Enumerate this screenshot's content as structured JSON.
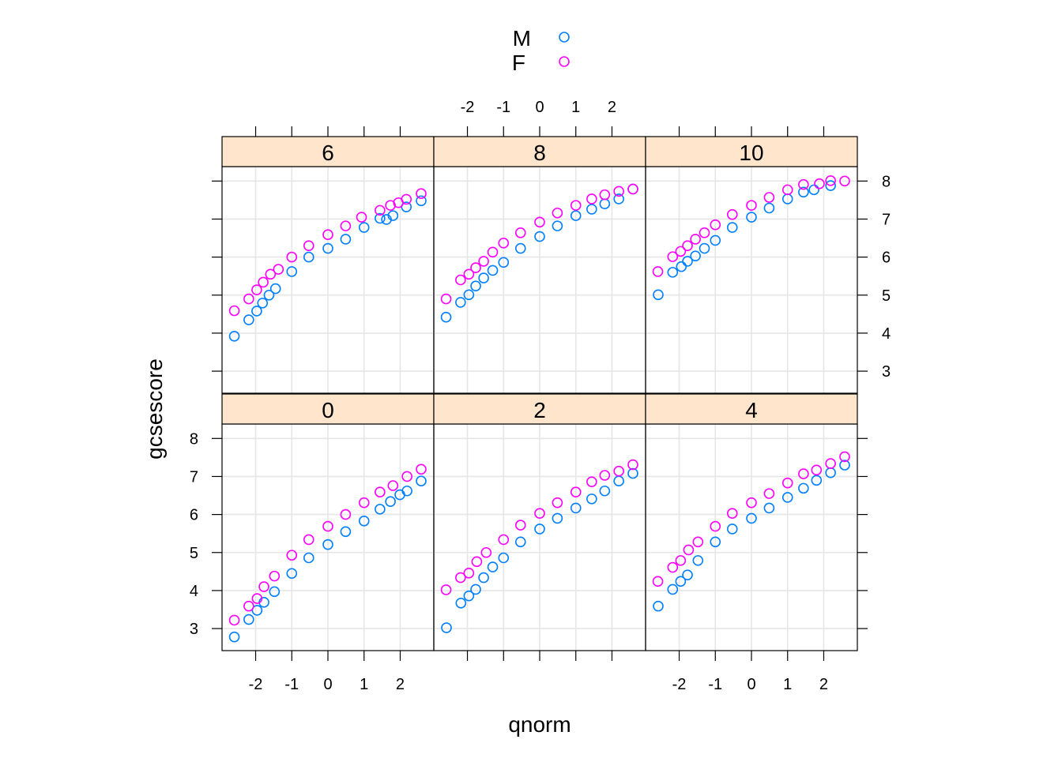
{
  "chart_data": {
    "type": "scatter",
    "subtype": "lattice qq-normal plot, 2x3 panels",
    "xlabel": "qnorm",
    "ylabel": "gcsescore",
    "xlim": [
      -2.93,
      2.93
    ],
    "ylim": [
      2.42,
      8.38
    ],
    "x_ticks": [
      -2,
      -1,
      0,
      1,
      2
    ],
    "y_ticks": [
      3,
      4,
      5,
      6,
      7,
      8
    ],
    "grid": true,
    "legend": {
      "placement": "top",
      "entries": [
        {
          "name": "M",
          "color": "#0080ff",
          "marker": "open-circle"
        },
        {
          "name": "F",
          "color": "#ff00ff",
          "marker": "open-circle"
        }
      ]
    },
    "strip_color": "#ffe5cc",
    "panels": [
      {
        "label": "6",
        "row": "top",
        "col": 1,
        "series": [
          {
            "name": "M",
            "points": [
              [
                -2.59,
                3.92
              ],
              [
                -2.19,
                4.35
              ],
              [
                -1.97,
                4.58
              ],
              [
                -1.81,
                4.79
              ],
              [
                -1.63,
                5.0
              ],
              [
                -1.45,
                5.17
              ],
              [
                -1.0,
                5.62
              ],
              [
                -0.53,
                6.0
              ],
              [
                0,
                6.23
              ],
              [
                0.49,
                6.47
              ],
              [
                1.0,
                6.78
              ],
              [
                1.44,
                7.02
              ],
              [
                1.62,
                6.99
              ],
              [
                1.8,
                7.09
              ],
              [
                2.17,
                7.32
              ],
              [
                2.58,
                7.48
              ]
            ]
          },
          {
            "name": "F",
            "points": [
              [
                -2.59,
                4.59
              ],
              [
                -2.19,
                4.9
              ],
              [
                -1.97,
                5.14
              ],
              [
                -1.79,
                5.34
              ],
              [
                -1.59,
                5.55
              ],
              [
                -1.37,
                5.68
              ],
              [
                -1.0,
                6.0
              ],
              [
                -0.53,
                6.3
              ],
              [
                0,
                6.59
              ],
              [
                0.49,
                6.82
              ],
              [
                0.93,
                7.05
              ],
              [
                1.44,
                7.23
              ],
              [
                1.73,
                7.36
              ],
              [
                1.95,
                7.43
              ],
              [
                2.17,
                7.52
              ],
              [
                2.58,
                7.67
              ]
            ]
          }
        ]
      },
      {
        "label": "8",
        "row": "top",
        "col": 2,
        "series": [
          {
            "name": "M",
            "points": [
              [
                -2.59,
                4.42
              ],
              [
                -2.19,
                4.81
              ],
              [
                -1.96,
                5.01
              ],
              [
                -1.77,
                5.24
              ],
              [
                -1.55,
                5.45
              ],
              [
                -1.3,
                5.65
              ],
              [
                -1.0,
                5.86
              ],
              [
                -0.53,
                6.23
              ],
              [
                0,
                6.54
              ],
              [
                0.49,
                6.82
              ],
              [
                1.0,
                7.09
              ],
              [
                1.44,
                7.26
              ],
              [
                1.8,
                7.4
              ],
              [
                2.19,
                7.53
              ],
              [
                2.58,
                7.79
              ]
            ]
          },
          {
            "name": "F",
            "points": [
              [
                -2.59,
                4.9
              ],
              [
                -2.19,
                5.4
              ],
              [
                -1.96,
                5.55
              ],
              [
                -1.77,
                5.72
              ],
              [
                -1.55,
                5.89
              ],
              [
                -1.3,
                6.13
              ],
              [
                -1.0,
                6.37
              ],
              [
                -0.53,
                6.64
              ],
              [
                0,
                6.92
              ],
              [
                0.49,
                7.16
              ],
              [
                1.0,
                7.36
              ],
              [
                1.44,
                7.53
              ],
              [
                1.8,
                7.64
              ],
              [
                2.19,
                7.73
              ],
              [
                2.58,
                7.79
              ]
            ]
          }
        ]
      },
      {
        "label": "10",
        "row": "top",
        "col": 3,
        "series": [
          {
            "name": "M",
            "points": [
              [
                -2.58,
                5.01
              ],
              [
                -2.18,
                5.6
              ],
              [
                -1.94,
                5.75
              ],
              [
                -1.77,
                5.89
              ],
              [
                -1.55,
                6.03
              ],
              [
                -1.3,
                6.23
              ],
              [
                -1.0,
                6.44
              ],
              [
                -0.53,
                6.78
              ],
              [
                0,
                7.05
              ],
              [
                0.49,
                7.29
              ],
              [
                1.0,
                7.53
              ],
              [
                1.44,
                7.71
              ],
              [
                1.73,
                7.77
              ],
              [
                2.19,
                7.88
              ]
            ]
          },
          {
            "name": "F",
            "points": [
              [
                -2.59,
                5.62
              ],
              [
                -2.18,
                6.01
              ],
              [
                -1.96,
                6.15
              ],
              [
                -1.77,
                6.3
              ],
              [
                -1.55,
                6.47
              ],
              [
                -1.3,
                6.64
              ],
              [
                -1.0,
                6.85
              ],
              [
                -0.53,
                7.12
              ],
              [
                0,
                7.36
              ],
              [
                0.49,
                7.57
              ],
              [
                1.0,
                7.77
              ],
              [
                1.44,
                7.91
              ],
              [
                1.88,
                7.93
              ],
              [
                2.19,
                8.01
              ],
              [
                2.58,
                8.0
              ]
            ]
          }
        ]
      },
      {
        "label": "0",
        "row": "bottom",
        "col": 1,
        "series": [
          {
            "name": "M",
            "points": [
              [
                -2.59,
                2.78
              ],
              [
                -2.19,
                3.24
              ],
              [
                -1.96,
                3.48
              ],
              [
                -1.77,
                3.69
              ],
              [
                -1.48,
                3.97
              ],
              [
                -1.0,
                4.45
              ],
              [
                -0.53,
                4.86
              ],
              [
                0,
                5.21
              ],
              [
                0.49,
                5.55
              ],
              [
                1.0,
                5.83
              ],
              [
                1.44,
                6.14
              ],
              [
                1.73,
                6.34
              ],
              [
                1.99,
                6.52
              ],
              [
                2.19,
                6.62
              ],
              [
                2.58,
                6.88
              ]
            ]
          },
          {
            "name": "F",
            "points": [
              [
                -2.59,
                3.22
              ],
              [
                -2.19,
                3.59
              ],
              [
                -1.96,
                3.79
              ],
              [
                -1.77,
                4.1
              ],
              [
                -1.48,
                4.38
              ],
              [
                -1.0,
                4.93
              ],
              [
                -0.53,
                5.34
              ],
              [
                0,
                5.69
              ],
              [
                0.49,
                6.0
              ],
              [
                1.0,
                6.31
              ],
              [
                1.44,
                6.59
              ],
              [
                1.8,
                6.76
              ],
              [
                2.19,
                7.0
              ],
              [
                2.58,
                7.19
              ]
            ]
          }
        ]
      },
      {
        "label": "2",
        "row": "bottom",
        "col": 2,
        "series": [
          {
            "name": "M",
            "points": [
              [
                -2.58,
                3.02
              ],
              [
                -2.18,
                3.67
              ],
              [
                -1.96,
                3.86
              ],
              [
                -1.77,
                4.03
              ],
              [
                -1.55,
                4.34
              ],
              [
                -1.3,
                4.62
              ],
              [
                -1.0,
                4.86
              ],
              [
                -0.53,
                5.28
              ],
              [
                0,
                5.62
              ],
              [
                0.49,
                5.9
              ],
              [
                1.0,
                6.17
              ],
              [
                1.44,
                6.41
              ],
              [
                1.8,
                6.62
              ],
              [
                2.19,
                6.88
              ],
              [
                2.58,
                7.08
              ]
            ]
          },
          {
            "name": "F",
            "points": [
              [
                -2.59,
                4.02
              ],
              [
                -2.19,
                4.34
              ],
              [
                -1.96,
                4.46
              ],
              [
                -1.74,
                4.76
              ],
              [
                -1.48,
                5.0
              ],
              [
                -1.0,
                5.34
              ],
              [
                -0.53,
                5.72
              ],
              [
                0,
                6.03
              ],
              [
                0.49,
                6.31
              ],
              [
                1.0,
                6.59
              ],
              [
                1.44,
                6.86
              ],
              [
                1.8,
                7.03
              ],
              [
                2.19,
                7.14
              ],
              [
                2.58,
                7.31
              ]
            ]
          }
        ]
      },
      {
        "label": "4",
        "row": "bottom",
        "col": 3,
        "series": [
          {
            "name": "M",
            "points": [
              [
                -2.58,
                3.59
              ],
              [
                -2.18,
                4.03
              ],
              [
                -1.96,
                4.24
              ],
              [
                -1.77,
                4.41
              ],
              [
                -1.48,
                4.79
              ],
              [
                -1.0,
                5.28
              ],
              [
                -0.53,
                5.62
              ],
              [
                0,
                5.9
              ],
              [
                0.49,
                6.17
              ],
              [
                1.0,
                6.45
              ],
              [
                1.44,
                6.69
              ],
              [
                1.8,
                6.9
              ],
              [
                2.19,
                7.1
              ],
              [
                2.58,
                7.3
              ]
            ]
          },
          {
            "name": "F",
            "points": [
              [
                -2.59,
                4.24
              ],
              [
                -2.18,
                4.61
              ],
              [
                -1.96,
                4.79
              ],
              [
                -1.74,
                5.07
              ],
              [
                -1.48,
                5.28
              ],
              [
                -1.0,
                5.69
              ],
              [
                -0.53,
                6.03
              ],
              [
                0,
                6.31
              ],
              [
                0.49,
                6.55
              ],
              [
                1.0,
                6.83
              ],
              [
                1.44,
                7.07
              ],
              [
                1.8,
                7.17
              ],
              [
                2.19,
                7.34
              ],
              [
                2.58,
                7.52
              ]
            ]
          }
        ]
      }
    ]
  }
}
